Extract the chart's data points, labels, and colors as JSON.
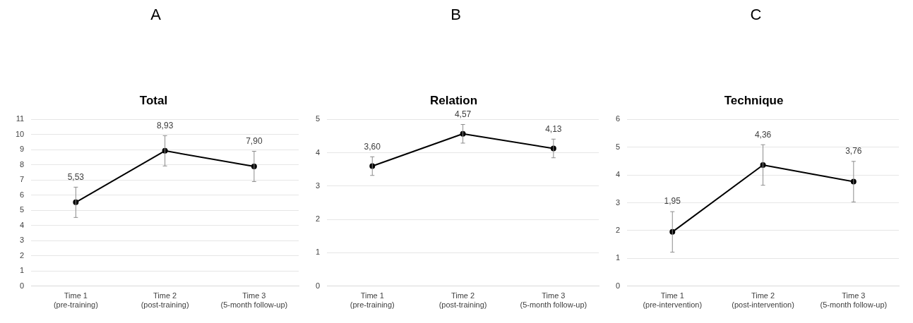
{
  "chart_data": [
    {
      "type": "line",
      "title": "Total",
      "annotations": [
        "A"
      ],
      "categories": [
        "Time 1\n(pre-training)",
        "Time 2\n(post-training)",
        "Time 3\n(5-month follow-up)"
      ],
      "series": [
        {
          "color": "#000000",
          "values": [
            5.53,
            8.93,
            7.9
          ],
          "errors": [
            1.0,
            1.0,
            1.0
          ],
          "value_labels": [
            "5,53",
            "8,93",
            "7,90"
          ]
        }
      ],
      "ylim": [
        0,
        11
      ],
      "yticks": [
        0,
        1,
        2,
        3,
        4,
        5,
        6,
        7,
        8,
        9,
        10,
        11
      ],
      "grid": "y",
      "legend": false,
      "marker": "circle",
      "line_style": "solid"
    },
    {
      "type": "line",
      "title": "Relation",
      "annotations": [
        "B"
      ],
      "categories": [
        "Time 1\n(pre-training)",
        "Time 2\n(post-training)",
        "Time 3\n(5-month follow-up)"
      ],
      "series": [
        {
          "color": "#000000",
          "values": [
            3.6,
            4.57,
            4.13
          ],
          "errors": [
            0.28,
            0.28,
            0.28
          ],
          "value_labels": [
            "3,60",
            "4,57",
            "4,13"
          ]
        }
      ],
      "ylim": [
        0,
        5
      ],
      "yticks": [
        0,
        1,
        2,
        3,
        4,
        5
      ],
      "grid": "y",
      "legend": false,
      "marker": "circle",
      "line_style": "solid"
    },
    {
      "type": "line",
      "title": "Technique",
      "annotations": [
        "C"
      ],
      "categories": [
        "Time 1\n(pre-intervention)",
        "Time 2\n(post-intervention)",
        "Time 3\n(5-month follow-up)"
      ],
      "series": [
        {
          "color": "#000000",
          "values": [
            1.95,
            4.36,
            3.76
          ],
          "errors": [
            0.73,
            0.73,
            0.73
          ],
          "value_labels": [
            "1,95",
            "4,36",
            "3,76"
          ]
        }
      ],
      "ylim": [
        0,
        6
      ],
      "yticks": [
        0,
        1,
        2,
        3,
        4,
        5,
        6
      ],
      "grid": "y",
      "legend": false,
      "marker": "circle",
      "line_style": "solid"
    }
  ]
}
